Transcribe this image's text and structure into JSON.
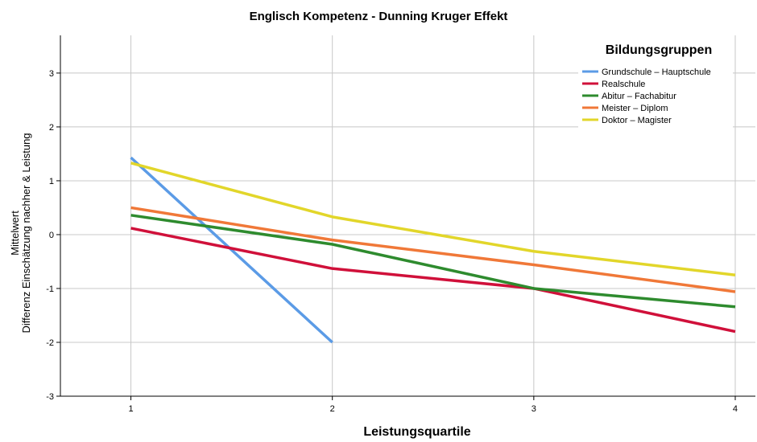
{
  "chart_data": {
    "type": "line",
    "title": "Englisch Kompetenz - Dunning Kruger Effekt",
    "xlabel": "Leistungsquartile",
    "ylabel_lines": [
      "Mittelwert",
      "Differenz Einschätzung nachher & Leistung"
    ],
    "categories": [
      "1",
      "2",
      "3",
      "4"
    ],
    "x": [
      1,
      2,
      3,
      4
    ],
    "xlim": [
      0.65,
      4.1
    ],
    "ylim": [
      -3,
      3.7
    ],
    "yticks": [
      -3,
      -2,
      -1,
      0,
      1,
      2,
      3
    ],
    "grid": true,
    "legend": {
      "title": "Bildungsgruppen",
      "position": "top-right"
    },
    "series": [
      {
        "name": "Grundschule – Hauptschule",
        "color": "#5b9be6",
        "values": [
          1.43,
          -2.0,
          null,
          null
        ]
      },
      {
        "name": "Realschule",
        "color": "#d0103a",
        "values": [
          0.12,
          -0.63,
          -1.0,
          -1.8
        ]
      },
      {
        "name": "Abitur – Fachabitur",
        "color": "#2e8b2e",
        "values": [
          0.36,
          -0.18,
          -1.0,
          -1.34
        ]
      },
      {
        "name": "Meister – Diplom",
        "color": "#f07838",
        "values": [
          0.5,
          -0.1,
          -0.56,
          -1.06
        ]
      },
      {
        "name": "Doktor – Magister",
        "color": "#e2d62a",
        "values": [
          1.33,
          0.33,
          -0.31,
          -0.75
        ]
      }
    ]
  }
}
